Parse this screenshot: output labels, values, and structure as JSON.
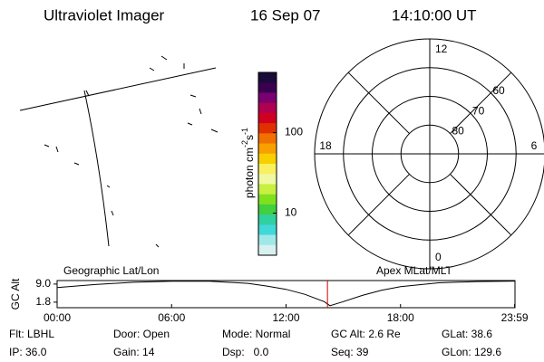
{
  "header": {
    "title": "Ultraviolet Imager",
    "date": "16 Sep 07",
    "time": "14:10:00 UT"
  },
  "colorbar": {
    "label": "photon cm",
    "exp1": "-2",
    "unit2": "s",
    "exp2": "-1",
    "zlim": [
      3,
      560
    ],
    "log": true,
    "ticks": [
      10,
      100
    ],
    "colors": [
      "#1a0a3a",
      "#3a0050",
      "#7a0070",
      "#b00050",
      "#d00020",
      "#e03000",
      "#f07000",
      "#f8a000",
      "#f8d000",
      "#f8f060",
      "#f0f8a0",
      "#c8f040",
      "#80e020",
      "#40d040",
      "#30d0a0",
      "#40d8d8",
      "#a0e8e8",
      "#d8f0f0"
    ]
  },
  "polar": {
    "rlim": [
      90,
      50
    ],
    "rticks": [
      80,
      70,
      60
    ],
    "mlt_ticks": [
      0,
      6,
      12,
      18
    ],
    "spokes": [
      0,
      3,
      6,
      9,
      12,
      15,
      18,
      21
    ]
  },
  "map_labels": {
    "geo": "Geographic Lat/Lon",
    "apex": "Apex MLat/MLT"
  },
  "altitude": {
    "ylabel": "GC Alt",
    "ylim": [
      -0.4,
      10.4
    ],
    "yticks": [
      1.8,
      {
        "value": 9,
        "label": "9.0"
      }
    ],
    "xlim": [
      0,
      24
    ],
    "xticks": [
      {
        "value": 0,
        "label": "00:00"
      },
      {
        "value": 6,
        "label": "06:00"
      },
      {
        "value": 12,
        "label": "12:00"
      },
      {
        "value": 18,
        "label": "18:00"
      },
      {
        "value": 23.98,
        "label": "23:59"
      }
    ],
    "x": [
      0,
      2,
      4,
      6,
      8,
      10,
      11,
      12,
      13,
      14,
      14.3,
      15,
      16,
      17,
      18,
      20,
      22,
      24
    ],
    "values": [
      7.6,
      8.8,
      9.7,
      10.1,
      10.1,
      9.3,
      8.2,
      6.9,
      4.9,
      2.0,
      0.4,
      2.0,
      4.5,
      6.5,
      8.0,
      9.5,
      10.0,
      10.2
    ],
    "marker": 14.17,
    "marker_color": "#d00000"
  },
  "footer": {
    "rows": [
      [
        "Flt: LBHL",
        "Door: Open",
        "Mode: Normal",
        "GC Alt: 2.6 Re",
        "GLat: 38.6"
      ],
      [
        "IP: 36.0",
        "Gain: 14",
        "Dsp:   0.0",
        "Seq: 39",
        "GLon: 129.6"
      ]
    ]
  }
}
